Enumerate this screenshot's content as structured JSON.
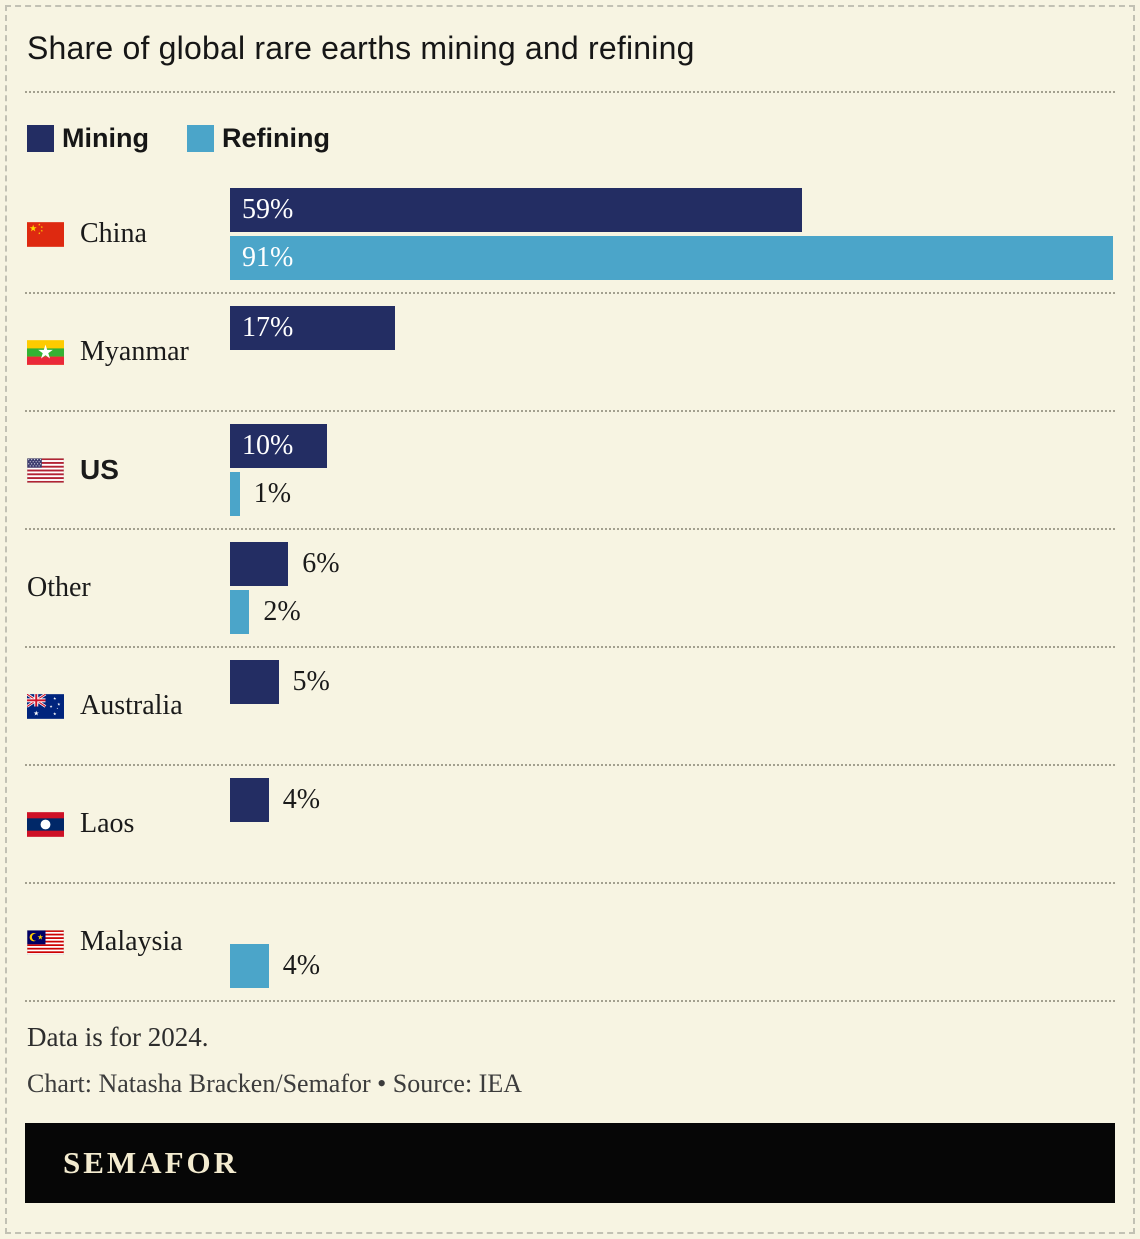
{
  "title": "Share of global rare earths mining and refining",
  "chart_data": {
    "type": "bar",
    "orientation": "horizontal",
    "unit": "%",
    "xlim": [
      0,
      100
    ],
    "grid": false,
    "legend_position": "top",
    "categories": [
      "China",
      "Myanmar",
      "US",
      "Other",
      "Australia",
      "Laos",
      "Malaysia"
    ],
    "flags": [
      "china",
      "myanmar",
      "us",
      null,
      "australia",
      "laos",
      "malaysia"
    ],
    "emphasized_categories": [
      "US"
    ],
    "series": [
      {
        "name": "Mining",
        "color": "#232d63",
        "values": [
          59,
          17,
          10,
          6,
          5,
          4,
          null
        ]
      },
      {
        "name": "Refining",
        "color": "#4ba5c9",
        "values": [
          91,
          null,
          1,
          2,
          null,
          null,
          4
        ]
      }
    ]
  },
  "footer": {
    "note": "Data is for 2024.",
    "credit": "Chart: Natasha Bracken/Semafor • Source: IEA",
    "logo": "SEMAFOR"
  },
  "colors": {
    "background": "#f7f4e2",
    "separator": "#a3a08f",
    "logo_bar": "#060606",
    "logo_text": "#f3ebcf"
  }
}
